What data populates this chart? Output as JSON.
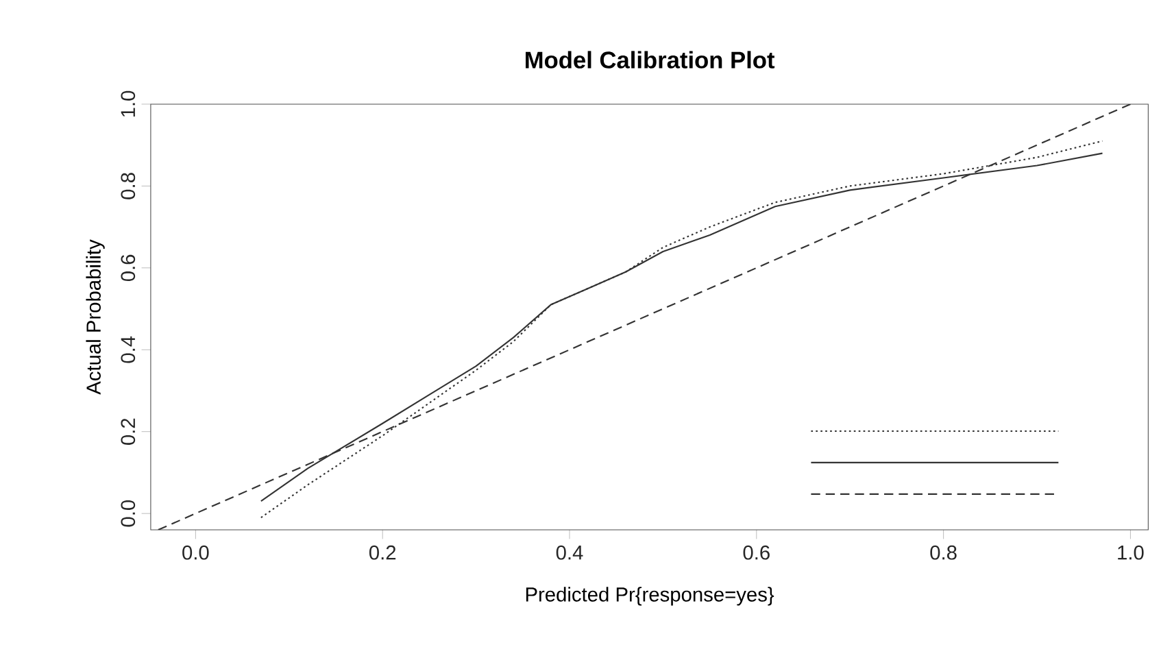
{
  "chart_data": {
    "type": "line",
    "title": "Model Calibration Plot",
    "xlabel": "Predicted Pr{response=yes}",
    "ylabel": "Actual Probability",
    "xlim": [
      -0.048,
      1.019
    ],
    "ylim": [
      -0.04,
      1.0
    ],
    "xticks": [
      {
        "value": 0,
        "label": "0.0"
      },
      0.2,
      0.4,
      0.6,
      0.8,
      {
        "value": 1,
        "label": "1.0"
      }
    ],
    "yticks": [
      {
        "value": 0,
        "label": "0.0"
      },
      0.2,
      0.4,
      0.6,
      0.8,
      {
        "value": 1,
        "label": "1.0"
      }
    ],
    "grid": false,
    "marker": "none",
    "series": [
      {
        "color": "#333333",
        "line_style": "dotted",
        "x": [
          0.07,
          0.12,
          0.2,
          0.25,
          0.3,
          0.34,
          0.38,
          0.42,
          0.46,
          0.5,
          0.55,
          0.62,
          0.7,
          0.8,
          0.9,
          0.97
        ],
        "values": [
          -0.01,
          0.07,
          0.19,
          0.27,
          0.35,
          0.42,
          0.51,
          0.55,
          0.59,
          0.65,
          0.7,
          0.76,
          0.8,
          0.83,
          0.87,
          0.91
        ]
      },
      {
        "color": "#333333",
        "line_style": "solid",
        "x": [
          0.07,
          0.12,
          0.2,
          0.25,
          0.3,
          0.34,
          0.38,
          0.42,
          0.46,
          0.5,
          0.55,
          0.62,
          0.7,
          0.8,
          0.9,
          0.97
        ],
        "values": [
          0.03,
          0.11,
          0.22,
          0.29,
          0.36,
          0.43,
          0.51,
          0.55,
          0.59,
          0.64,
          0.68,
          0.75,
          0.79,
          0.82,
          0.85,
          0.88
        ]
      },
      {
        "color": "#333333",
        "line_style": "dashed",
        "x": [
          -0.04,
          1.0
        ],
        "values": [
          -0.04,
          1.0
        ]
      }
    ]
  }
}
